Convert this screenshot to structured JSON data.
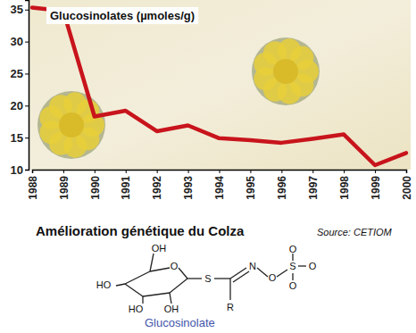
{
  "chart_data": {
    "type": "line",
    "title": "Glucosinolates (µmoles/g)",
    "caption": "Amélioration génétique du Colza",
    "source": "Source: CETIOM",
    "x": [
      1988,
      1989,
      1990,
      1991,
      1992,
      1993,
      1994,
      1995,
      1996,
      1997,
      1998,
      1999,
      2000
    ],
    "values": [
      35.3,
      34.8,
      18.3,
      19.2,
      16.0,
      16.9,
      14.9,
      14.6,
      14.2,
      14.8,
      15.5,
      10.7,
      12.6
    ],
    "color": "#c8141c",
    "xlim": [
      1988,
      2000
    ],
    "xticks": [
      1988,
      1989,
      1990,
      1991,
      1992,
      1993,
      1994,
      1995,
      1996,
      1997,
      1998,
      1999,
      2000
    ],
    "ylim": [
      10,
      36.5
    ],
    "yticks": [
      10,
      15,
      20,
      25,
      30,
      35
    ],
    "grid": false
  },
  "molecule": {
    "name": "Glucosinolate",
    "atoms": [
      "OH",
      "HO",
      "HO",
      "OH",
      "O",
      "S",
      "N",
      "O",
      "S",
      "O",
      "O",
      "O",
      "R"
    ]
  }
}
